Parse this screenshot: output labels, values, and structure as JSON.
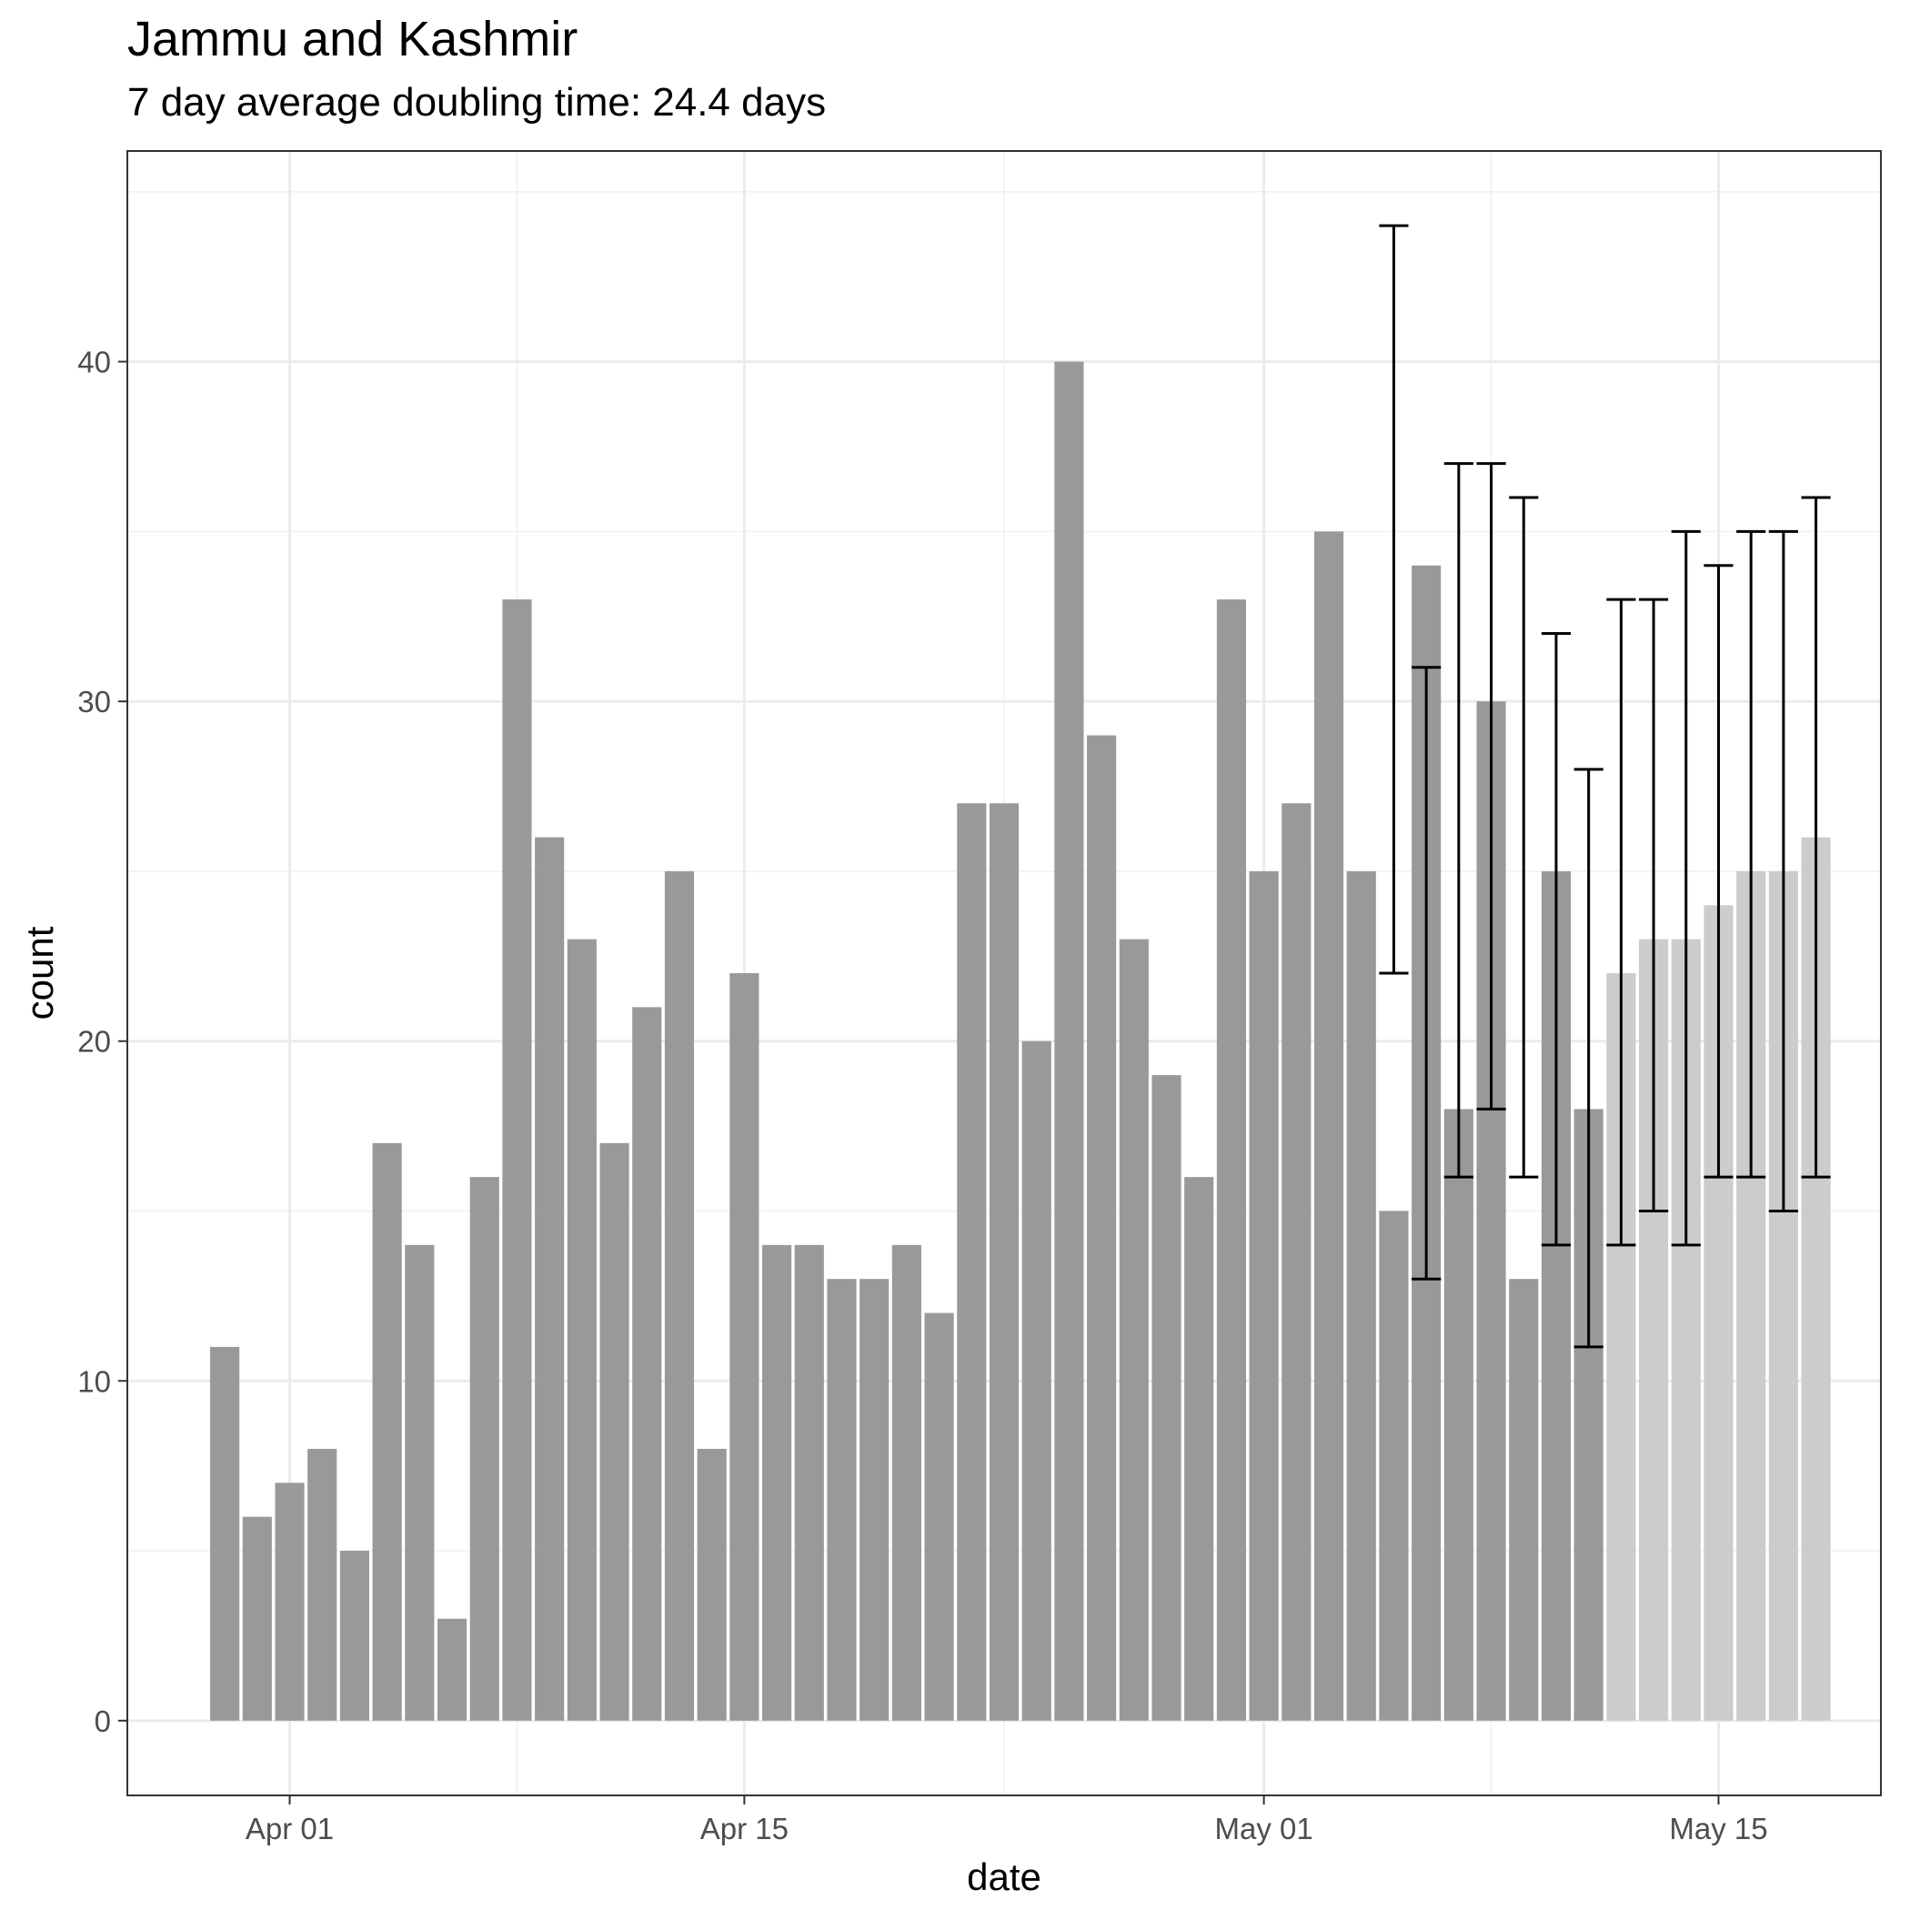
{
  "chart_data": {
    "type": "bar",
    "title": "Jammu and Kashmir",
    "subtitle": "7 day average doubling time: 24.4 days",
    "xlabel": "date",
    "ylabel": "count",
    "x_tick_labels": [
      "Apr 01",
      "Apr 15",
      "May 01",
      "May 15"
    ],
    "x_tick_dates": [
      "2020-04-01",
      "2020-04-15",
      "2020-05-01",
      "2020-05-15"
    ],
    "y_ticks": [
      0,
      10,
      20,
      30,
      40
    ],
    "ylim": [
      -2.2,
      46.2
    ],
    "xlim": [
      "2020-03-27",
      "2020-05-20"
    ],
    "grid": true,
    "colors": {
      "observed": "#999999",
      "projected": "#cccccc",
      "error_bar": "#000000"
    },
    "series": [
      {
        "x": [
          "2020-03-30",
          "2020-03-31",
          "2020-04-01",
          "2020-04-02",
          "2020-04-03",
          "2020-04-04",
          "2020-04-05",
          "2020-04-06",
          "2020-04-07",
          "2020-04-08",
          "2020-04-09",
          "2020-04-10",
          "2020-04-11",
          "2020-04-12",
          "2020-04-13",
          "2020-04-14",
          "2020-04-15",
          "2020-04-16",
          "2020-04-17",
          "2020-04-18",
          "2020-04-19",
          "2020-04-20",
          "2020-04-21",
          "2020-04-22",
          "2020-04-23",
          "2020-04-24",
          "2020-04-25",
          "2020-04-26",
          "2020-04-27",
          "2020-04-28",
          "2020-04-29",
          "2020-04-30",
          "2020-05-01",
          "2020-05-02",
          "2020-05-03",
          "2020-05-04",
          "2020-05-05",
          "2020-05-06",
          "2020-05-07",
          "2020-05-08",
          "2020-05-09",
          "2020-05-10",
          "2020-05-11"
        ],
        "values": [
          11,
          6,
          7,
          8,
          5,
          17,
          14,
          3,
          16,
          33,
          26,
          23,
          17,
          21,
          25,
          8,
          22,
          14,
          14,
          13,
          13,
          14,
          12,
          27,
          27,
          20,
          40,
          29,
          23,
          19,
          16,
          33,
          25,
          27,
          35,
          25,
          15,
          34,
          18,
          30,
          13,
          25,
          18
        ],
        "color": "#999999"
      },
      {
        "x": [
          "2020-05-12",
          "2020-05-13",
          "2020-05-14",
          "2020-05-15",
          "2020-05-16",
          "2020-05-17",
          "2020-05-18"
        ],
        "values": [
          22,
          23,
          23,
          24,
          25,
          25,
          26
        ],
        "color": "#cccccc"
      }
    ],
    "error_bars": [
      {
        "x": "2020-05-05",
        "low": 22,
        "high": 44
      },
      {
        "x": "2020-05-06",
        "low": 13,
        "high": 31
      },
      {
        "x": "2020-05-07",
        "low": 16,
        "high": 37
      },
      {
        "x": "2020-05-08",
        "low": 18,
        "high": 37
      },
      {
        "x": "2020-05-09",
        "low": 16,
        "high": 36
      },
      {
        "x": "2020-05-10",
        "low": 14,
        "high": 32
      },
      {
        "x": "2020-05-11",
        "low": 11,
        "high": 28
      },
      {
        "x": "2020-05-12",
        "low": 14,
        "high": 33
      },
      {
        "x": "2020-05-13",
        "low": 15,
        "high": 33
      },
      {
        "x": "2020-05-14",
        "low": 14,
        "high": 35
      },
      {
        "x": "2020-05-15",
        "low": 16,
        "high": 34
      },
      {
        "x": "2020-05-16",
        "low": 16,
        "high": 35
      },
      {
        "x": "2020-05-17",
        "low": 15,
        "high": 35
      },
      {
        "x": "2020-05-18",
        "low": 16,
        "high": 36
      }
    ]
  }
}
